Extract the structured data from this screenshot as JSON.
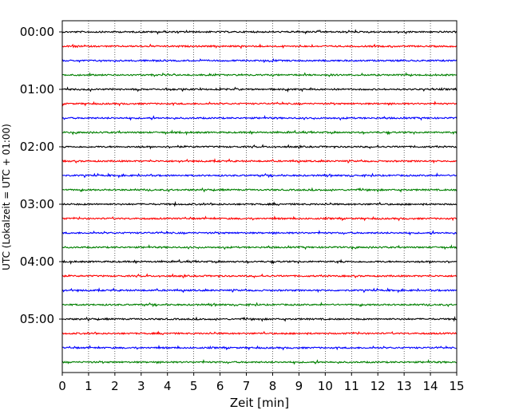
{
  "chart_data": {
    "type": "line",
    "title": "",
    "xlabel": "Zeit  [min]",
    "ylabel": "UTC (Lokalzeit = UTC + 01:00)",
    "xlim": [
      0,
      15
    ],
    "x_ticks": [
      "0",
      "1",
      "2",
      "3",
      "4",
      "5",
      "6",
      "7",
      "8",
      "9",
      "10",
      "11",
      "12",
      "13",
      "14",
      "15"
    ],
    "y_tick_labels": [
      "00:00",
      "01:00",
      "02:00",
      "03:00",
      "04:00",
      "05:00"
    ],
    "trace_interval_min": 15,
    "trace_count": 24,
    "trace_start_times": [
      "00:00",
      "00:15",
      "00:30",
      "00:45",
      "01:00",
      "01:15",
      "01:30",
      "01:45",
      "02:00",
      "02:15",
      "02:30",
      "02:45",
      "03:00",
      "03:15",
      "03:30",
      "03:45",
      "04:00",
      "04:15",
      "04:30",
      "04:45",
      "05:00",
      "05:15",
      "05:30",
      "05:45"
    ],
    "color_cycle": [
      "#000000",
      "#ff0000",
      "#0000ff",
      "#008000"
    ],
    "grid": "vertical dotted lines at each minute",
    "legend": "none"
  }
}
